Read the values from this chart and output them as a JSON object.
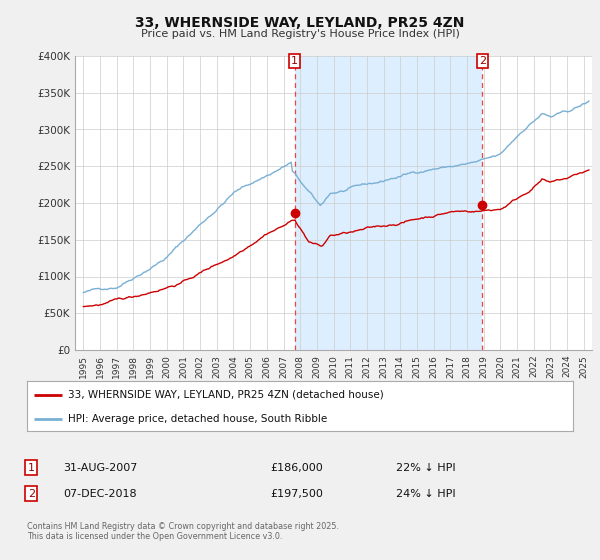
{
  "title_line1": "33, WHERNSIDE WAY, LEYLAND, PR25 4ZN",
  "title_line2": "Price paid vs. HM Land Registry's House Price Index (HPI)",
  "legend_line1": "33, WHERNSIDE WAY, LEYLAND, PR25 4ZN (detached house)",
  "legend_line2": "HPI: Average price, detached house, South Ribble",
  "footer": "Contains HM Land Registry data © Crown copyright and database right 2025.\nThis data is licensed under the Open Government Licence v3.0.",
  "annotation1_date": "31-AUG-2007",
  "annotation1_price": "£186,000",
  "annotation1_hpi": "22% ↓ HPI",
  "annotation2_date": "07-DEC-2018",
  "annotation2_price": "£197,500",
  "annotation2_hpi": "24% ↓ HPI",
  "sale1_x": 2007.67,
  "sale1_y": 186000,
  "sale2_x": 2018.92,
  "sale2_y": 197500,
  "ylim": [
    0,
    400000
  ],
  "xlim": [
    1994.5,
    2025.5
  ],
  "yticks": [
    0,
    50000,
    100000,
    150000,
    200000,
    250000,
    300000,
    350000,
    400000
  ],
  "ytick_labels": [
    "£0",
    "£50K",
    "£100K",
    "£150K",
    "£200K",
    "£250K",
    "£300K",
    "£350K",
    "£400K"
  ],
  "xticks": [
    1995,
    1996,
    1997,
    1998,
    1999,
    2000,
    2001,
    2002,
    2003,
    2004,
    2005,
    2006,
    2007,
    2008,
    2009,
    2010,
    2011,
    2012,
    2013,
    2014,
    2015,
    2016,
    2017,
    2018,
    2019,
    2020,
    2021,
    2022,
    2023,
    2024,
    2025
  ],
  "line_color_red": "#cc0000",
  "line_color_blue": "#7ab0d4",
  "shade_color": "#ddeeff",
  "background_color": "#f0f0f0",
  "plot_bg_color": "#ffffff",
  "grid_color": "#cccccc",
  "dashed_color": "#ee4444"
}
